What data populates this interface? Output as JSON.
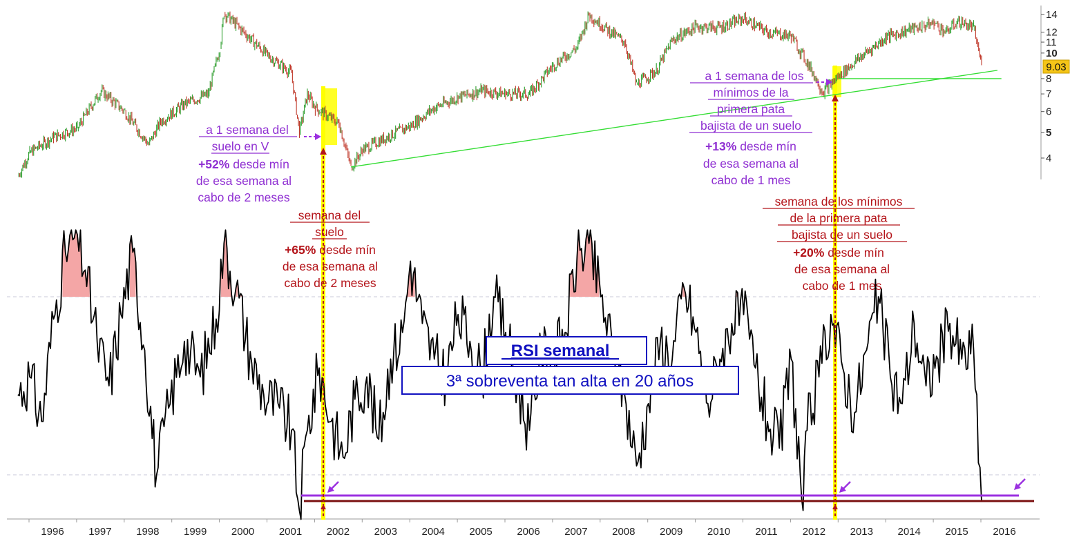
{
  "chart_data": [
    {
      "type": "line",
      "panel": "price",
      "yscale": "log",
      "ylim": [
        3.3,
        15
      ],
      "yticks": [
        4,
        5,
        6,
        7,
        8,
        10,
        11,
        12,
        14
      ],
      "yticks_bold": [
        5,
        10
      ],
      "last_value_label": "9.03",
      "series": [
        {
          "x": [
            "1995-10",
            "1996-01",
            "1996-07",
            "1997-01",
            "1997-07",
            "1998-01",
            "1998-07",
            "1998-10",
            "1999-04",
            "1999-10",
            "2000-01",
            "2000-02",
            "2000-07",
            "2001-01",
            "2001-07",
            "2001-09",
            "2001-11",
            "2002-01",
            "2002-07",
            "2002-10",
            "2003-01",
            "2003-07",
            "2004-01",
            "2004-07",
            "2005-01",
            "2005-07",
            "2006-01",
            "2006-07",
            "2007-01",
            "2007-07",
            "2007-10",
            "2008-01",
            "2008-07",
            "2008-10",
            "2009-03",
            "2009-07",
            "2010-01",
            "2010-07",
            "2011-01",
            "2011-07",
            "2012-01",
            "2012-06",
            "2012-09",
            "2013-01",
            "2013-07",
            "2014-01",
            "2014-07",
            "2015-01",
            "2015-04",
            "2015-07",
            "2015-11",
            "2016-01"
          ],
          "values": [
            3.4,
            4.2,
            4.8,
            5.2,
            7.2,
            6.0,
            4.5,
            5.5,
            6.4,
            7.0,
            10.5,
            14.2,
            12.0,
            9.8,
            8.4,
            5.0,
            7.0,
            6.2,
            5.4,
            3.7,
            4.3,
            4.8,
            5.3,
            6.2,
            6.8,
            7.2,
            7.0,
            7.0,
            9.0,
            10.5,
            14.0,
            12.8,
            11.0,
            7.6,
            8.6,
            11.2,
            12.6,
            12.5,
            13.5,
            12.0,
            11.6,
            8.7,
            7.1,
            8.2,
            9.8,
            11.5,
            12.3,
            13.0,
            12.0,
            13.2,
            12.5,
            9.03
          ]
        }
      ],
      "trendlines": [
        {
          "from": [
            "2002-10",
            3.7
          ],
          "to": [
            "2016-05",
            8.6
          ]
        },
        {
          "from": [
            "2013-01",
            8.0
          ],
          "to": [
            "2016-06",
            8.0
          ]
        }
      ]
    },
    {
      "type": "line",
      "panel": "RSI semanal",
      "ylim": [
        20,
        85
      ],
      "reference_lines": [
        70,
        30
      ],
      "overbought_fill": "above 70",
      "series": [
        {
          "x": [
            "1995-10",
            "1996-01",
            "1996-04",
            "1996-07",
            "1996-10",
            "1997-01",
            "1997-03",
            "1997-06",
            "1997-09",
            "1997-12",
            "1998-03",
            "1998-06",
            "1998-09",
            "1998-12",
            "1999-04",
            "1999-08",
            "1999-12",
            "2000-02",
            "2000-05",
            "2000-09",
            "2000-12",
            "2001-04",
            "2001-07",
            "2001-09",
            "2001-11",
            "2002-02",
            "2002-05",
            "2002-08",
            "2002-11",
            "2003-02",
            "2003-05",
            "2003-08",
            "2003-11",
            "2004-01",
            "2004-04",
            "2004-07",
            "2004-10",
            "2005-01",
            "2005-04",
            "2005-07",
            "2005-10",
            "2006-01",
            "2006-04",
            "2006-07",
            "2006-10",
            "2007-01",
            "2007-04",
            "2007-07",
            "2007-10",
            "2008-01",
            "2008-04",
            "2008-07",
            "2008-10",
            "2009-01",
            "2009-04",
            "2009-07",
            "2009-10",
            "2010-01",
            "2010-04",
            "2010-07",
            "2010-10",
            "2011-01",
            "2011-04",
            "2011-07",
            "2011-10",
            "2012-01",
            "2012-04",
            "2012-05",
            "2012-08",
            "2012-11",
            "2013-02",
            "2013-05",
            "2013-08",
            "2013-11",
            "2014-02",
            "2014-05",
            "2014-08",
            "2014-11",
            "2015-02",
            "2015-05",
            "2015-08",
            "2015-11",
            "2016-01"
          ],
          "values": [
            48,
            52,
            42,
            65,
            80,
            84,
            76,
            60,
            50,
            66,
            80,
            58,
            30,
            45,
            60,
            52,
            65,
            82,
            72,
            55,
            48,
            45,
            40,
            22,
            40,
            54,
            42,
            34,
            47,
            52,
            38,
            56,
            62,
            78,
            64,
            56,
            52,
            66,
            60,
            52,
            70,
            62,
            50,
            40,
            58,
            56,
            62,
            79,
            82,
            70,
            58,
            48,
            32,
            46,
            60,
            56,
            72,
            62,
            46,
            56,
            64,
            66,
            54,
            42,
            36,
            56,
            22,
            40,
            52,
            66,
            54,
            44,
            58,
            70,
            52,
            46,
            64,
            50,
            56,
            64,
            56,
            58,
            24
          ]
        }
      ]
    }
  ],
  "years": [
    "1996",
    "1997",
    "1998",
    "1999",
    "2000",
    "2001",
    "2002",
    "2003",
    "2004",
    "2005",
    "2006",
    "2007",
    "2008",
    "2009",
    "2010",
    "2011",
    "2012",
    "2013",
    "2014",
    "2015",
    "2016"
  ],
  "annotations": {
    "purple_left": {
      "l1": "a 1 semana del",
      "l2": "suelo en V",
      "pct": "+52%",
      "l3_rest": "desde mín",
      "l4": "de esa semana al",
      "l5": "cabo de 2 meses"
    },
    "red_left": {
      "l1": "semana del",
      "l2": "suelo",
      "pct": "+65%",
      "l3_rest": "desde mín",
      "l4": "de esa semana al",
      "l5": "cabo de 2 meses"
    },
    "purple_right": {
      "l1": "a 1 semana de los",
      "l2": "mínimos de la",
      "l3": "primera pata",
      "l4": "bajista de un suelo",
      "pct": "+13%",
      "l5_rest": "desde mín",
      "l6": "de esa semana al",
      "l7": "cabo de 1 mes"
    },
    "red_right": {
      "l1": "semana de los mínimos",
      "l2": "de la primera pata",
      "l3": "bajista de un suelo",
      "pct": "+20%",
      "l4_rest": "desde mín",
      "l5": "de esa semana al",
      "l6": "cabo de 1 mes"
    },
    "rsi_title": "RSI semanal",
    "rsi_subtitle": "3ª sobreventa tan alta en 20 años"
  },
  "colors": {
    "price_up": "#2e9e2e",
    "price_down": "#c0392b",
    "trendline": "#33dd33",
    "highlight": "#ffff00",
    "purple": "#8f2fd2",
    "red": "#b4141a",
    "rsi_fill": "#f4a6a6",
    "box": "#1010c0",
    "value_badge": "#f5c518"
  }
}
